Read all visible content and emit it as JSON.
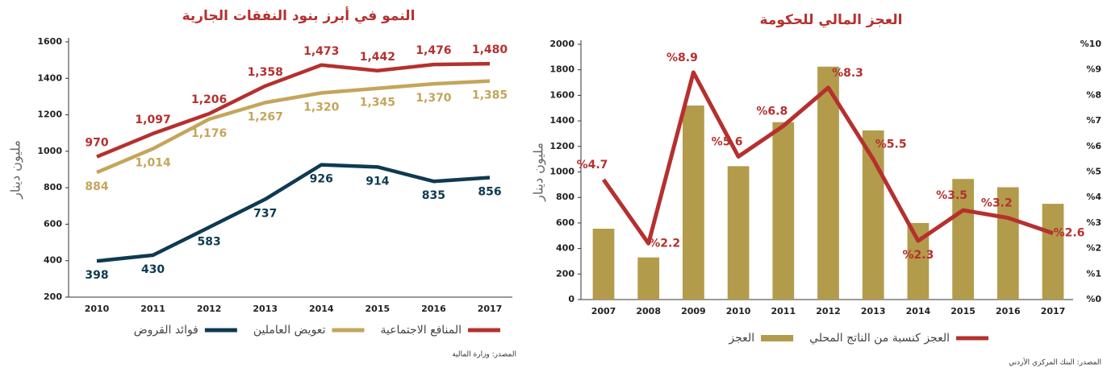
{
  "chart_data": [
    {
      "type": "line",
      "title": "النمو في أبرز بنود النفقات الجارية",
      "y_label": "مليون دينار",
      "categories": [
        "2010",
        "2011",
        "2012",
        "2013",
        "2014",
        "2015",
        "2016",
        "2017"
      ],
      "ylim": [
        200,
        1600
      ],
      "yticks": [
        200,
        400,
        600,
        800,
        1000,
        1200,
        1400,
        1600
      ],
      "series": [
        {
          "name": "المنافع الاجتماعية",
          "color": "#b5302e",
          "values": [
            970,
            1097,
            1206,
            1358,
            1473,
            1442,
            1476,
            1480
          ],
          "value_labels": [
            "970",
            "1,097",
            "1,206",
            "1,358",
            "1,473",
            "1,442",
            "1,476",
            "1,480"
          ]
        },
        {
          "name": "تعويض العاملين",
          "color": "#c4a55a",
          "values": [
            884,
            1014,
            1176,
            1267,
            1320,
            1345,
            1370,
            1385
          ],
          "value_labels": [
            "884",
            "1,014",
            "1,176",
            "1,267",
            "1,320",
            "1,345",
            "1,370",
            "1,385"
          ]
        },
        {
          "name": "فوائد القروض",
          "color": "#0e3a52",
          "values": [
            398,
            430,
            583,
            737,
            926,
            914,
            835,
            856
          ]
        }
      ],
      "source": "المصدر: وزارة المالية"
    },
    {
      "type": "bar_line",
      "title": "العجز المالي للحكومة",
      "y_label": "مليون دينار",
      "categories": [
        "2007",
        "2008",
        "2009",
        "2010",
        "2011",
        "2012",
        "2013",
        "2014",
        "2015",
        "2016",
        "2017"
      ],
      "ylim": [
        0,
        2000
      ],
      "yticks": [
        0,
        200,
        400,
        600,
        800,
        1000,
        1200,
        1400,
        1600,
        1800,
        2000
      ],
      "y2lim": [
        0,
        10
      ],
      "y2ticks": [
        {
          "value": 0,
          "label": "%0"
        },
        {
          "value": 1,
          "label": "%1"
        },
        {
          "value": 2,
          "label": "%2"
        },
        {
          "value": 3,
          "label": "%3"
        },
        {
          "value": 4,
          "label": "%4"
        },
        {
          "value": 5,
          "label": "%5"
        },
        {
          "value": 6,
          "label": "%6"
        },
        {
          "value": 7,
          "label": "%7"
        },
        {
          "value": 8,
          "label": "%8"
        },
        {
          "value": 9,
          "label": "%9"
        },
        {
          "value": 10,
          "label": "%10"
        }
      ],
      "series": [
        {
          "name": "العجز كنسبة من الناتج المحلي",
          "color": "#b5302e",
          "axis": "y2",
          "values": [
            4.7,
            2.2,
            8.9,
            5.6,
            6.8,
            8.3,
            5.5,
            2.3,
            3.5,
            3.2,
            2.6
          ],
          "value_labels": [
            "%4.7",
            "%2.2",
            "%8.9",
            "%5.6",
            "%6.8",
            "%8.3",
            "%5.5",
            "%2.3",
            "%3.5",
            "%3.2",
            "%2.6"
          ]
        },
        {
          "name": "العجز",
          "color": "#b39b4c",
          "values": [
            555,
            330,
            1520,
            1045,
            1390,
            1825,
            1325,
            600,
            945,
            880,
            750
          ]
        }
      ],
      "source": "المصدر: البنك المركزي الأردني"
    }
  ]
}
